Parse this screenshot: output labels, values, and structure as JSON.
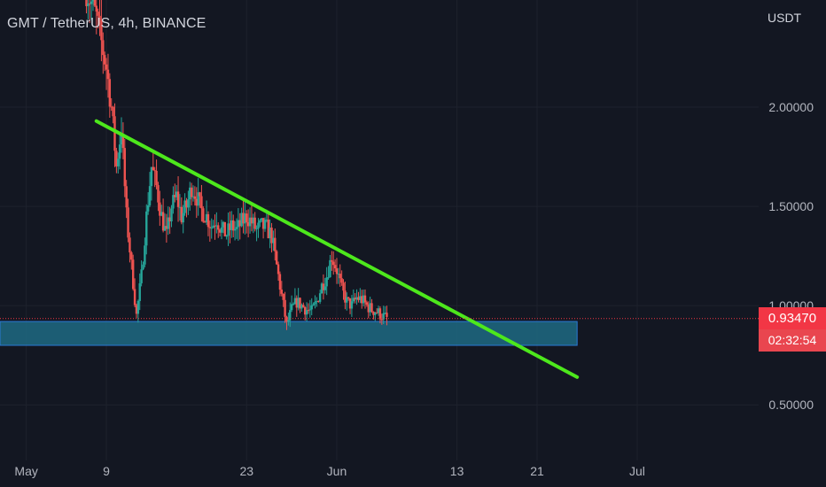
{
  "chart_data": {
    "type": "candlestick",
    "title": "GMT / TetherUS, 4h, BINANCE",
    "currency": "USDT",
    "y_axis_side": "right",
    "y_ticks": [
      "2.00000",
      "1.50000",
      "1.00000",
      "0.50000"
    ],
    "y_tick_values": [
      2.0,
      1.5,
      1.0,
      0.5
    ],
    "y_range": [
      0.22,
      2.54
    ],
    "x_ticks": [
      "May",
      "9",
      "23",
      "Jun",
      "13",
      "21",
      "Jul"
    ],
    "x_tick_dates": [
      "2022-05-01",
      "2022-05-09",
      "2022-05-23",
      "2022-06-01",
      "2022-06-13",
      "2022-06-21",
      "2022-07-01"
    ],
    "x_range": [
      "2022-04-28T09:00",
      "2022-07-13T03:00"
    ],
    "last_price": "0.93470",
    "last_price_value": 0.9347,
    "countdown": "02:32:54",
    "up_color": "#26a69a",
    "down_color": "#ef5350",
    "price_path": [
      [
        "2022-05-07",
        2.6
      ],
      [
        "2022-05-08",
        2.45
      ],
      [
        "2022-05-09",
        2.2
      ],
      [
        "2022-05-09T12:00",
        2.0
      ],
      [
        "2022-05-10",
        1.7
      ],
      [
        "2022-05-10T12:00",
        1.9
      ],
      [
        "2022-05-11",
        1.45
      ],
      [
        "2022-05-11T12:00",
        1.2
      ],
      [
        "2022-05-12",
        0.95
      ],
      [
        "2022-05-12T12:00",
        1.15
      ],
      [
        "2022-05-13",
        1.45
      ],
      [
        "2022-05-13T12:00",
        1.7
      ],
      [
        "2022-05-14",
        1.6
      ],
      [
        "2022-05-14T12:00",
        1.45
      ],
      [
        "2022-05-15",
        1.35
      ],
      [
        "2022-05-15T12:00",
        1.5
      ],
      [
        "2022-05-16",
        1.55
      ],
      [
        "2022-05-16T12:00",
        1.45
      ],
      [
        "2022-05-17",
        1.5
      ],
      [
        "2022-05-17T12:00",
        1.6
      ],
      [
        "2022-05-18",
        1.55
      ],
      [
        "2022-05-18T12:00",
        1.48
      ],
      [
        "2022-05-19",
        1.45
      ],
      [
        "2022-05-19T12:00",
        1.4
      ],
      [
        "2022-05-20",
        1.44
      ],
      [
        "2022-05-20T12:00",
        1.38
      ],
      [
        "2022-05-21",
        1.36
      ],
      [
        "2022-05-21T12:00",
        1.4
      ],
      [
        "2022-05-22",
        1.38
      ],
      [
        "2022-05-22T12:00",
        1.42
      ],
      [
        "2022-05-23",
        1.45
      ],
      [
        "2022-05-23T12:00",
        1.42
      ],
      [
        "2022-05-24",
        1.38
      ],
      [
        "2022-05-24T12:00",
        1.4
      ],
      [
        "2022-05-25",
        1.39
      ],
      [
        "2022-05-25T12:00",
        1.35
      ],
      [
        "2022-05-26",
        1.2
      ],
      [
        "2022-05-26T12:00",
        1.05
      ],
      [
        "2022-05-27",
        0.9
      ],
      [
        "2022-05-27T12:00",
        0.98
      ],
      [
        "2022-05-28",
        1.02
      ],
      [
        "2022-05-28T12:00",
        1.0
      ],
      [
        "2022-05-29",
        0.98
      ],
      [
        "2022-05-29T12:00",
        0.97
      ],
      [
        "2022-05-30",
        1.02
      ],
      [
        "2022-05-30T12:00",
        1.1
      ],
      [
        "2022-05-31",
        1.15
      ],
      [
        "2022-05-31T12:00",
        1.25
      ],
      [
        "2022-06-01",
        1.18
      ],
      [
        "2022-06-01T12:00",
        1.08
      ],
      [
        "2022-06-02",
        1.02
      ],
      [
        "2022-06-02T12:00",
        1.0
      ],
      [
        "2022-06-03",
        1.04
      ],
      [
        "2022-06-03T12:00",
        1.03
      ],
      [
        "2022-06-04",
        1.0
      ],
      [
        "2022-06-04T12:00",
        0.98
      ],
      [
        "2022-06-05",
        0.97
      ],
      [
        "2022-06-05T12:00",
        0.95
      ],
      [
        "2022-06-06",
        0.935
      ]
    ],
    "annotations": [
      {
        "type": "trendline",
        "color": "#4de81c",
        "start": [
          "2022-05-08",
          1.93
        ],
        "end": [
          "2022-06-25",
          0.64
        ]
      },
      {
        "type": "support_zone",
        "color": "#1f6a82",
        "border": "#2a79d6",
        "start": "2022-04-28T09:00",
        "end": "2022-06-25",
        "low": 0.8,
        "high": 0.92
      }
    ]
  }
}
